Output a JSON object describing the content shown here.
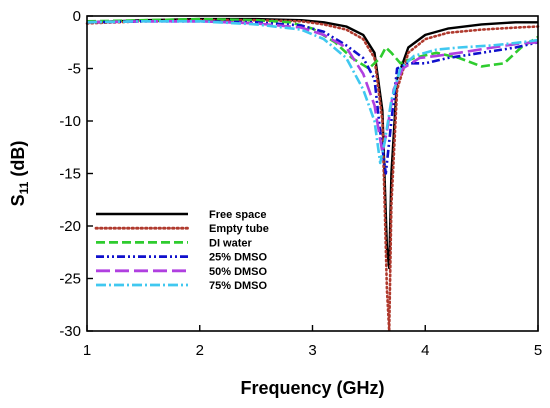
{
  "chart_data": {
    "type": "line",
    "title": "",
    "xlabel": "Frequency (GHz)",
    "ylabel_main": "S",
    "ylabel_sub": "11",
    "ylabel_unit": " (dB)",
    "xlim": [
      1,
      5
    ],
    "ylim": [
      -30,
      0
    ],
    "xticks": [
      "1",
      "2",
      "3",
      "4",
      "5"
    ],
    "yticks": [
      "0",
      "-5",
      "-10",
      "-15",
      "-20",
      "-25",
      "-30"
    ],
    "grid": false,
    "legend_position": "lower-left",
    "series": [
      {
        "name": "Free space",
        "color": "#000000",
        "style": "solid",
        "x": [
          1.0,
          1.5,
          2.0,
          2.5,
          2.9,
          3.1,
          3.3,
          3.45,
          3.55,
          3.62,
          3.66,
          3.68,
          3.7,
          3.75,
          3.85,
          4.0,
          4.2,
          4.5,
          4.8,
          5.0
        ],
        "y": [
          -0.6,
          -0.4,
          -0.3,
          -0.3,
          -0.4,
          -0.6,
          -1.0,
          -1.8,
          -3.5,
          -9.0,
          -22.0,
          -24.0,
          -15.0,
          -6.0,
          -3.0,
          -1.8,
          -1.2,
          -0.8,
          -0.6,
          -0.6
        ]
      },
      {
        "name": "Empty tube",
        "color": "#b03a2e",
        "style": "dotted",
        "x": [
          1.0,
          1.5,
          2.0,
          2.5,
          2.9,
          3.1,
          3.3,
          3.45,
          3.55,
          3.62,
          3.66,
          3.68,
          3.7,
          3.75,
          3.85,
          4.0,
          4.2,
          4.5,
          4.8,
          5.0
        ],
        "y": [
          -0.7,
          -0.5,
          -0.4,
          -0.4,
          -0.5,
          -0.8,
          -1.3,
          -2.2,
          -4.0,
          -10.0,
          -26.0,
          -30.0,
          -18.0,
          -7.0,
          -3.5,
          -2.2,
          -1.6,
          -1.3,
          -1.1,
          -1.0
        ]
      },
      {
        "name": "DI water",
        "color": "#2ecc2e",
        "style": "dashed",
        "x": [
          1.0,
          1.5,
          2.0,
          2.5,
          2.8,
          3.0,
          3.2,
          3.35,
          3.5,
          3.6,
          3.65,
          3.7,
          3.78,
          3.9,
          4.1,
          4.3,
          4.5,
          4.7,
          4.85,
          5.0
        ],
        "y": [
          -0.5,
          -0.4,
          -0.3,
          -0.4,
          -0.6,
          -1.2,
          -2.5,
          -4.0,
          -5.0,
          -4.0,
          -3.0,
          -3.5,
          -4.5,
          -4.0,
          -3.5,
          -4.0,
          -4.8,
          -4.5,
          -3.0,
          -2.0
        ]
      },
      {
        "name": "25% DMSO",
        "color": "#1010cc",
        "style": "dashdotdot",
        "x": [
          1.0,
          1.5,
          2.0,
          2.5,
          2.9,
          3.1,
          3.3,
          3.45,
          3.55,
          3.6,
          3.65,
          3.7,
          3.75,
          3.85,
          4.0,
          4.2,
          4.5,
          4.8,
          5.0
        ],
        "y": [
          -0.6,
          -0.5,
          -0.5,
          -0.6,
          -0.9,
          -1.5,
          -2.8,
          -4.0,
          -6.0,
          -11.0,
          -15.0,
          -10.0,
          -5.0,
          -4.5,
          -4.5,
          -4.0,
          -3.5,
          -3.0,
          -2.5
        ]
      },
      {
        "name": "50% DMSO",
        "color": "#b040e0",
        "style": "longdash",
        "x": [
          1.0,
          1.5,
          2.0,
          2.5,
          2.9,
          3.1,
          3.3,
          3.45,
          3.55,
          3.62,
          3.66,
          3.72,
          3.8,
          3.95,
          4.1,
          4.3,
          4.6,
          4.85,
          5.0
        ],
        "y": [
          -0.6,
          -0.5,
          -0.5,
          -0.7,
          -1.1,
          -1.8,
          -3.0,
          -5.5,
          -8.5,
          -13.0,
          -11.0,
          -7.0,
          -5.0,
          -4.0,
          -3.8,
          -3.5,
          -3.0,
          -2.6,
          -2.5
        ]
      },
      {
        "name": "75% DMSO",
        "color": "#40c8f0",
        "style": "dashdot",
        "x": [
          1.0,
          1.5,
          2.0,
          2.5,
          2.9,
          3.1,
          3.3,
          3.45,
          3.55,
          3.6,
          3.64,
          3.7,
          3.78,
          3.9,
          4.1,
          4.3,
          4.6,
          4.85,
          5.0
        ],
        "y": [
          -0.6,
          -0.5,
          -0.5,
          -0.8,
          -1.3,
          -2.2,
          -4.0,
          -7.0,
          -10.0,
          -14.0,
          -12.0,
          -8.0,
          -5.0,
          -3.8,
          -3.2,
          -3.0,
          -2.8,
          -2.5,
          -2.3
        ]
      }
    ]
  }
}
